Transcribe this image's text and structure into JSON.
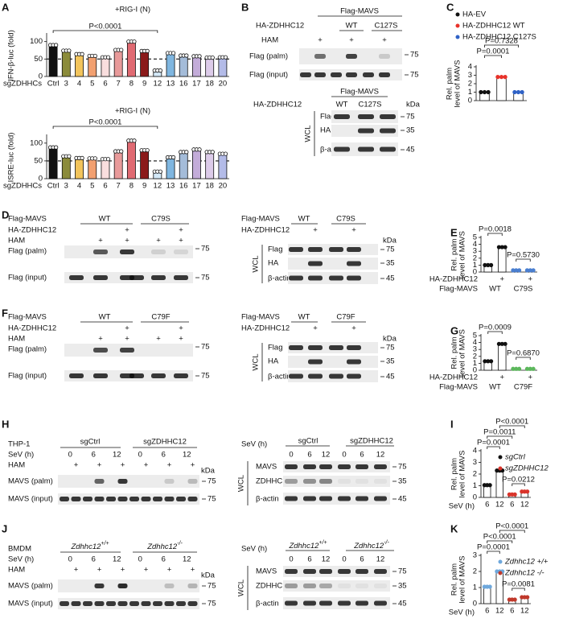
{
  "panel_labels": [
    "A",
    "B",
    "C",
    "D",
    "E",
    "F",
    "G",
    "H",
    "I",
    "J",
    "K"
  ],
  "chart_data": [
    {
      "type": "bar",
      "title": "+RIG-I (N)",
      "ylabel": [
        "IFN-β-luc (fold)"
      ],
      "xlabel": "sgZDHHCs",
      "categories": [
        "Ctrl",
        "3",
        "4",
        "5",
        "6",
        "7",
        "8",
        "9",
        "12",
        "13",
        "16",
        "17",
        "18",
        "20"
      ],
      "values": [
        90,
        74,
        64,
        59,
        55,
        76,
        100,
        73,
        17,
        67,
        60,
        58,
        54,
        55
      ],
      "colors": [
        "#111111",
        "#8b8b3a",
        "#f2c45c",
        "#f2a070",
        "#f9dede",
        "#e89a9a",
        "#e06a72",
        "#8b1a1a",
        "#d4e9f8",
        "#7fb6e0",
        "#a4bcd9",
        "#c3acd9",
        "#dccbe9",
        "#b3bbe8"
      ],
      "category_colors": [
        "#111111",
        "#111111",
        "#111111",
        "#111111",
        "#111111",
        "#111111",
        "#111111",
        "#111111",
        "#1f9bd7",
        "#111111",
        "#111111",
        "#111111",
        "#111111",
        "#111111"
      ],
      "ylim": [
        0,
        120
      ],
      "yticks": [
        0,
        50,
        100
      ],
      "reference_line": 50,
      "annotations": [
        "P<0.0001"
      ]
    },
    {
      "type": "bar",
      "title": "+RIG-I (N)",
      "ylabel": [
        "ISRE-luc (fold)"
      ],
      "xlabel": "sgZDHHCs",
      "categories": [
        "Ctrl",
        "3",
        "4",
        "5",
        "6",
        "7",
        "8",
        "9",
        "12",
        "13",
        "16",
        "17",
        "18",
        "20"
      ],
      "values": [
        88,
        63,
        58,
        57,
        55,
        77,
        107,
        80,
        20,
        60,
        75,
        82,
        75,
        70
      ],
      "colors": [
        "#111111",
        "#8b8b3a",
        "#f2c45c",
        "#f2a070",
        "#f9dede",
        "#e89a9a",
        "#e06a72",
        "#8b1a1a",
        "#d4e9f8",
        "#7fb6e0",
        "#a4bcd9",
        "#c3acd9",
        "#dccbe9",
        "#b3bbe8"
      ],
      "category_colors": [
        "#111111",
        "#111111",
        "#111111",
        "#111111",
        "#111111",
        "#111111",
        "#111111",
        "#111111",
        "#1f9bd7",
        "#111111",
        "#111111",
        "#111111",
        "#111111",
        "#111111"
      ],
      "ylim": [
        0,
        120
      ],
      "yticks": [
        0,
        50,
        100
      ],
      "reference_line": 50,
      "annotations": [
        "P<0.0001"
      ]
    },
    {
      "type": "bar",
      "ylabel": [
        "Rel. palm",
        "level of MAVS"
      ],
      "categories": [
        null,
        null,
        null
      ],
      "series": [
        {
          "name": "HA-EV",
          "color": "#111111",
          "values": [
            1.0,
            null,
            null
          ]
        },
        {
          "name": "HA-ZDHHC12 WT",
          "color": "#e8322a",
          "values": [
            null,
            2.8,
            null
          ]
        },
        {
          "name": "HA-ZDHHC12 C127S",
          "color": "#2f62c6",
          "values": [
            null,
            null,
            1.0
          ]
        }
      ],
      "ylim": [
        0,
        4
      ],
      "yticks": [
        0,
        1,
        2,
        3,
        4
      ],
      "annotations": [
        "P=0.7328",
        "P=0.0001"
      ]
    },
    {
      "type": "bar",
      "ylabel": [
        "Rel. palm",
        "level of MAVS"
      ],
      "categories": [
        null,
        "+",
        null,
        "+"
      ],
      "values": [
        1.0,
        3.6,
        0.25,
        0.25
      ],
      "colors": [
        "#111111",
        "#111111",
        "#4a7fd0",
        "#4a7fd0"
      ],
      "row_labels": [
        "HA-ZDHHC12",
        "Flag-MAVS"
      ],
      "groups": [
        "WT",
        "C79S"
      ],
      "ylim": [
        0,
        5
      ],
      "yticks": [
        0,
        1,
        2,
        3,
        4,
        5
      ],
      "annotations": [
        "P=0.0018",
        "P=0.5730"
      ]
    },
    {
      "type": "bar",
      "ylabel": [
        "Rel. palm",
        "level of MAVS"
      ],
      "categories": [
        null,
        "+",
        null,
        "+"
      ],
      "values": [
        1.3,
        3.8,
        0.2,
        0.2
      ],
      "colors": [
        "#111111",
        "#111111",
        "#5cb85c",
        "#5cb85c"
      ],
      "row_labels": [
        "HA-ZDHHC12",
        "Flag-MAVS"
      ],
      "groups": [
        "WT",
        "C79F"
      ],
      "ylim": [
        0,
        5
      ],
      "yticks": [
        0,
        1,
        2,
        3,
        4,
        5
      ],
      "annotations": [
        "P=0.0009",
        "P=0.6870"
      ]
    },
    {
      "type": "bar",
      "ylabel": [
        "Rel. palm",
        "level of MAVS"
      ],
      "xlabel": "SeV (h)",
      "categories": [
        "6",
        "12",
        "6",
        "12"
      ],
      "series": [
        {
          "name": "sgCtrl",
          "color": "#111111",
          "values": [
            1.05,
            2.3,
            null,
            null
          ]
        },
        {
          "name": "sgZDHHC12",
          "color": "#d9342b",
          "values": [
            null,
            null,
            0.25,
            0.5
          ]
        }
      ],
      "ylim": [
        0,
        4
      ],
      "yticks": [
        0,
        1,
        2,
        3,
        4
      ],
      "annotations": [
        "P<0.0001",
        "P=0.0011",
        "P=0.0001",
        "P=0.0212"
      ]
    },
    {
      "type": "bar",
      "ylabel": [
        "Rel. palm",
        "level of MAVS"
      ],
      "xlabel": "SeV (h)",
      "categories": [
        "6",
        "12",
        "6",
        "12"
      ],
      "series": [
        {
          "name": "Zdhhc12 +/+",
          "color": "#6fa8dc",
          "values": [
            1.05,
            2.0,
            null,
            null
          ]
        },
        {
          "name": "Zdhhc12 -/-",
          "color": "#c0392b",
          "values": [
            null,
            null,
            0.25,
            0.4
          ]
        }
      ],
      "ylim": [
        0,
        3
      ],
      "yticks": [
        0,
        1,
        2,
        3
      ],
      "annotations": [
        "P<0.0001",
        "P<0.0001",
        "P=0.0001",
        "P=0.0081"
      ]
    }
  ],
  "blots": {
    "common": {
      "plus": "+",
      "kda": "kDa",
      "wcl": "WCL",
      "ham": "HAM",
      "mw_75": "75",
      "mw_35": "35",
      "mw_45": "45",
      "flag_palm": "Flag (palm)",
      "flag_input": "Flag (input)",
      "flag": "Flag",
      "ha": "HA",
      "actin": "β-actin",
      "flag_mavs": "Flag-MAVS",
      "ha_zdhhc12": "HA-ZDHHC12",
      "wt": "WT",
      "mavs_palm": "MAVS (palm)",
      "mavs_input": "MAVS (input)",
      "mavs": "MAVS",
      "zdhhc12": "ZDHHC12",
      "sev": "SeV (h)",
      "t0": "0",
      "t6": "6",
      "t12": "12"
    },
    "B": {
      "mutant": "C127S"
    },
    "D": {
      "mutant": "C79S"
    },
    "F": {
      "mutant": "C79F"
    },
    "H": {
      "cell": "THP-1",
      "group1": "sgCtrl",
      "group2": "sgZDHHC12"
    },
    "J": {
      "cell": "BMDM",
      "gene": "Zdhhc12",
      "group1": "+/+",
      "group2": "-/-"
    }
  }
}
